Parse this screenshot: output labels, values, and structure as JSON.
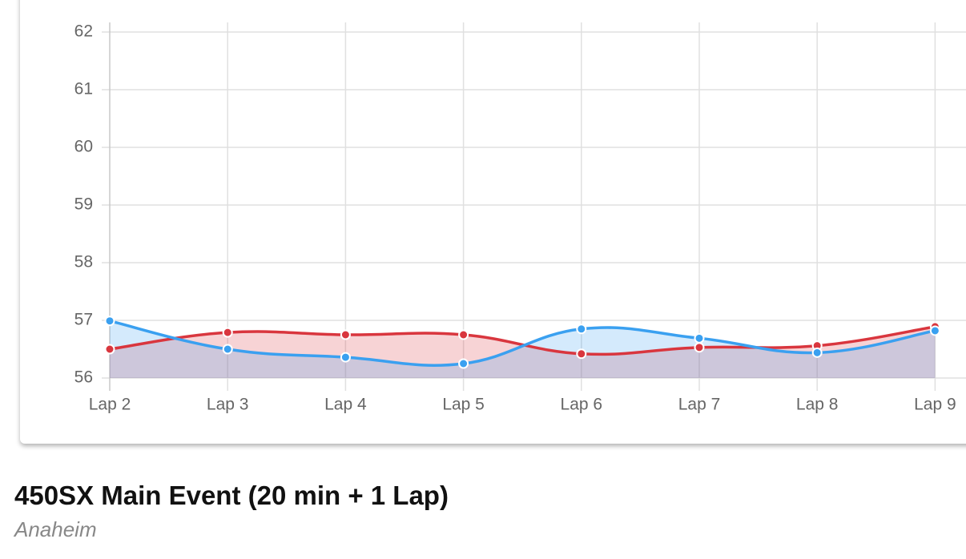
{
  "chart_data": {
    "type": "line",
    "categories": [
      "Lap 2",
      "Lap 3",
      "Lap 4",
      "Lap 5",
      "Lap 6",
      "Lap 7",
      "Lap 8",
      "Lap 9"
    ],
    "series": [
      {
        "color": "#d9363e",
        "values": [
          56.5,
          56.79,
          56.75,
          56.75,
          56.42,
          56.53,
          56.56,
          56.89
        ]
      },
      {
        "color": "#3aa0f0",
        "values": [
          56.99,
          56.5,
          56.36,
          56.25,
          56.85,
          56.69,
          56.44,
          56.82
        ]
      }
    ],
    "ylim": [
      56,
      62
    ],
    "yticks": [
      56,
      57,
      58,
      59,
      60,
      61,
      62
    ],
    "grid": true
  },
  "heading": {
    "title": "450SX Main Event (20 min + 1 Lap)",
    "subtitle": "Anaheim"
  }
}
